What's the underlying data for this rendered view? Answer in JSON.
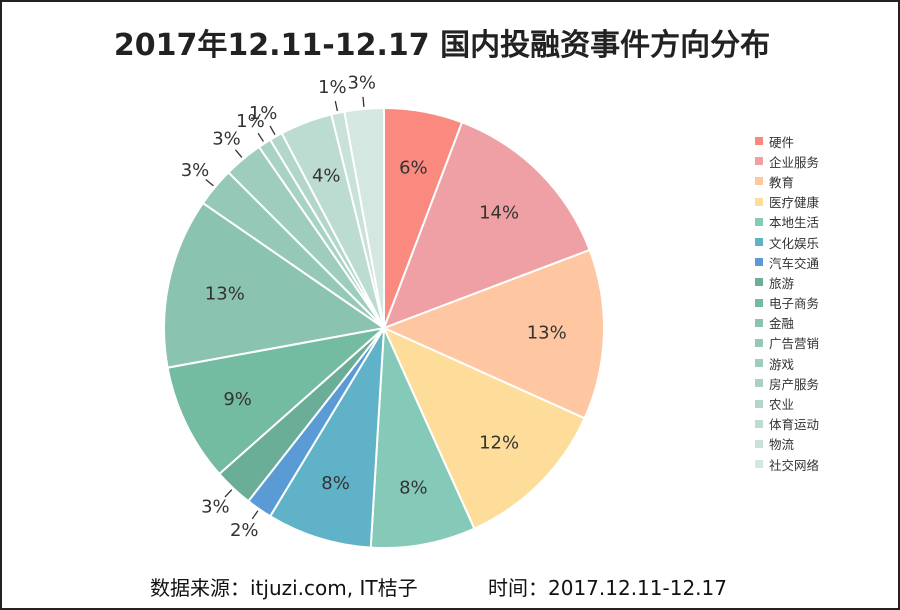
{
  "title": "2017年12.11-12.17 国内投融资事件方向分布",
  "footer": {
    "source": "数据来源：itjuzi.com, IT桔子",
    "time": "时间：2017.12.11-12.17"
  },
  "chart_data": {
    "type": "pie",
    "title": "2017年12.11-12.17 国内投融资事件方向分布",
    "legend_position": "right",
    "label_format": "percent",
    "slices": [
      {
        "name": "硬件",
        "value": 6,
        "label": "6%",
        "color": "#FA8A80"
      },
      {
        "name": "企业服务",
        "value": 14,
        "label": "14%",
        "color": "#EFA0A5"
      },
      {
        "name": "教育",
        "value": 13,
        "label": "13%",
        "color": "#FEC7A2"
      },
      {
        "name": "医疗健康",
        "value": 12,
        "label": "12%",
        "color": "#FEDD9A"
      },
      {
        "name": "本地生活",
        "value": 8,
        "label": "8%",
        "color": "#85CAB9"
      },
      {
        "name": "文化娱乐",
        "value": 8,
        "label": "8%",
        "color": "#5FB2C7"
      },
      {
        "name": "汽车交通",
        "value": 2,
        "label": "2%",
        "color": "#5B9BD5"
      },
      {
        "name": "旅游",
        "value": 3,
        "label": "3%",
        "color": "#6AAE97"
      },
      {
        "name": "电子商务",
        "value": 9,
        "label": "9%",
        "color": "#74BCA1"
      },
      {
        "name": "金融",
        "value": 13,
        "label": "13%",
        "color": "#8AC4B0"
      },
      {
        "name": "广告营销",
        "value": 3,
        "label": "3%",
        "color": "#95C8B6"
      },
      {
        "name": "游戏",
        "value": 3,
        "label": "3%",
        "color": "#9ECDBD"
      },
      {
        "name": "房产服务",
        "value": 1,
        "label": "1%",
        "color": "#A8D2C3"
      },
      {
        "name": "农业",
        "value": 1,
        "label": "1%",
        "color": "#B2D7CA"
      },
      {
        "name": "体育运动",
        "value": 4,
        "label": "4%",
        "color": "#BDDCD1"
      },
      {
        "name": "物流",
        "value": 1,
        "label": "1%",
        "color": "#C8E2D8"
      },
      {
        "name": "社交网络",
        "value": 3,
        "label": "3%",
        "color": "#D4E7E0"
      }
    ]
  }
}
